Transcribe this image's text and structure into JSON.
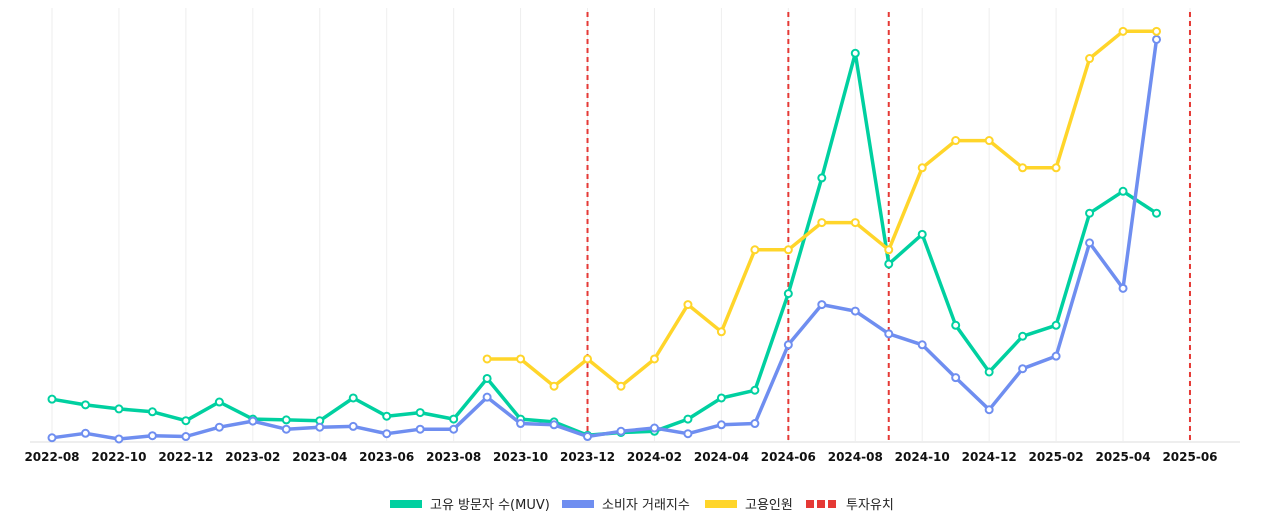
{
  "chart_data": {
    "type": "line",
    "title": "",
    "xlabel": "",
    "ylabel": "",
    "x": [
      "2022-08",
      "2022-09",
      "2022-10",
      "2022-11",
      "2022-12",
      "2023-01",
      "2023-02",
      "2023-03",
      "2023-04",
      "2023-05",
      "2023-06",
      "2023-07",
      "2023-08",
      "2023-09",
      "2023-10",
      "2023-11",
      "2023-12",
      "2024-01",
      "2024-02",
      "2024-03",
      "2024-04",
      "2024-05",
      "2024-06",
      "2024-07",
      "2024-08",
      "2024-09",
      "2024-10",
      "2024-11",
      "2024-12",
      "2025-01",
      "2025-02",
      "2025-03",
      "2025-04",
      "2025-05",
      "2025-06"
    ],
    "x_tick_labels": [
      "2022-08",
      "2022-10",
      "2022-12",
      "2023-02",
      "2023-04",
      "2023-06",
      "2023-08",
      "2023-10",
      "2023-12",
      "2024-02",
      "2024-04",
      "2024-06",
      "2024-08",
      "2024-10",
      "2024-12",
      "2025-02",
      "2025-04",
      "2025-06"
    ],
    "ylim": [
      0,
      100
    ],
    "grid_x": true,
    "grid_y": false,
    "legend_position": "bottom",
    "series": [
      {
        "name": "고유 방문자 수(MUV)",
        "color": "#00d0a0",
        "values": [
          10.3,
          8.9,
          7.9,
          7.2,
          5.0,
          9.6,
          5.4,
          5.2,
          5.0,
          10.6,
          6.1,
          7.0,
          5.4,
          15.4,
          5.4,
          4.7,
          1.4,
          2.1,
          2.4,
          5.4,
          10.6,
          12.5,
          36.3,
          64.8,
          95.5,
          43.6,
          50.9,
          28.5,
          17.0,
          25.8,
          28.5,
          56.1,
          61.5,
          56.1,
          null
        ]
      },
      {
        "name": "소비자 거래지수",
        "color": "#6f8ef0",
        "values": [
          0.8,
          1.9,
          0.5,
          1.3,
          1.1,
          3.4,
          4.9,
          2.9,
          3.4,
          3.6,
          1.8,
          2.9,
          2.9,
          10.8,
          4.3,
          4.0,
          1.1,
          2.4,
          3.2,
          1.8,
          4.0,
          4.3,
          23.7,
          33.6,
          32.0,
          26.4,
          23.7,
          15.6,
          7.7,
          17.8,
          20.9,
          48.8,
          37.6,
          98.9,
          null
        ]
      },
      {
        "name": "고용인원",
        "color": "#ffd52a",
        "values": [
          null,
          null,
          null,
          null,
          null,
          null,
          null,
          null,
          null,
          null,
          null,
          null,
          null,
          20.2,
          20.2,
          13.5,
          20.2,
          13.5,
          20.2,
          33.6,
          26.9,
          47.1,
          47.1,
          53.8,
          53.8,
          47.1,
          67.3,
          74.0,
          74.0,
          67.3,
          67.3,
          94.2,
          100.9,
          100.9,
          null
        ]
      }
    ],
    "events": {
      "name": "투자유치",
      "color": "#e53935",
      "x": [
        "2023-12",
        "2024-06",
        "2024-09",
        "2025-06"
      ]
    }
  }
}
